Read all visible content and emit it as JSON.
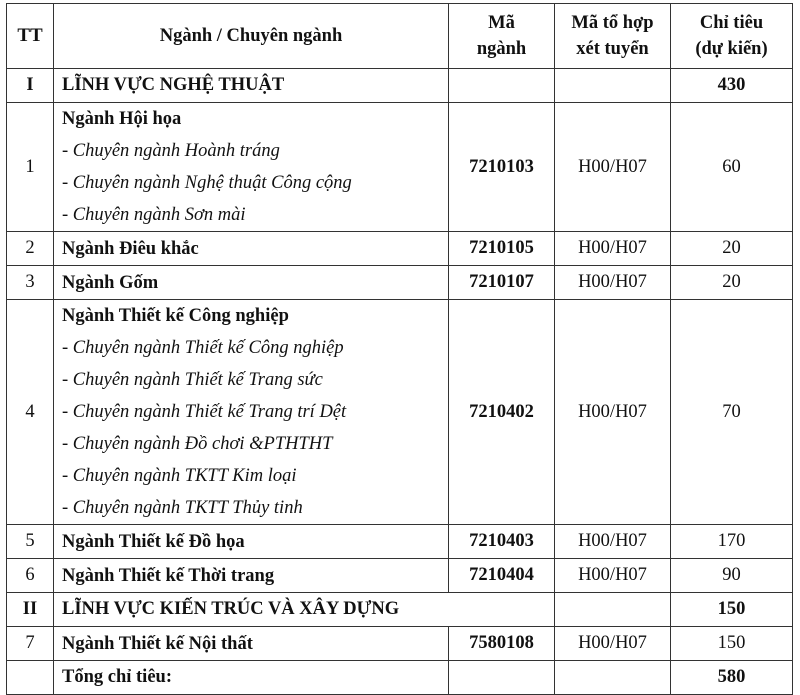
{
  "header": {
    "tt": "TT",
    "name": "Ngành / Chuyên ngành",
    "code_line1": "Mã",
    "code_line2": "ngành",
    "combo_line1": "Mã tổ hợp",
    "combo_line2": "xét tuyển",
    "quota_line1": "Chỉ tiêu",
    "quota_line2": "(dự kiến)"
  },
  "rows": [
    {
      "type": "section",
      "tt": "I",
      "name": "LĨNH VỰC NGHỆ THUẬT",
      "quota": "430"
    },
    {
      "type": "major",
      "tt": "1",
      "name": "Ngành Hội họa",
      "subs": [
        "- Chuyên ngành Hoành tráng",
        "- Chuyên ngành Nghệ thuật Công cộng",
        "- Chuyên ngành Sơn mài"
      ],
      "code": "7210103",
      "combo": "H00/H07",
      "quota": "60"
    },
    {
      "type": "major",
      "tt": "2",
      "name": "Ngành Điêu khắc",
      "subs": [],
      "code": "7210105",
      "combo": "H00/H07",
      "quota": "20"
    },
    {
      "type": "major",
      "tt": "3",
      "name": "Ngành Gốm",
      "subs": [],
      "code": "7210107",
      "combo": "H00/H07",
      "quota": "20"
    },
    {
      "type": "major",
      "tt": "4",
      "name": "Ngành Thiết kế Công nghiệp",
      "subs": [
        "- Chuyên ngành Thiết kế Công nghiệp",
        "- Chuyên ngành Thiết kế Trang sức",
        "- Chuyên ngành Thiết kế Trang trí Dệt",
        "- Chuyên ngành Đồ chơi &PTHTHT",
        "- Chuyên ngành TKTT Kim loại",
        "- Chuyên ngành TKTT Thủy tinh"
      ],
      "code": "7210402",
      "combo": "H00/H07",
      "quota": "70"
    },
    {
      "type": "major",
      "tt": "5",
      "name": "Ngành Thiết kế Đồ họa",
      "subs": [],
      "code": "7210403",
      "combo": "H00/H07",
      "quota": "170"
    },
    {
      "type": "major",
      "tt": "6",
      "name": "Ngành Thiết kế Thời trang",
      "subs": [],
      "code": "7210404",
      "combo": "H00/H07",
      "quota": "90"
    },
    {
      "type": "section2",
      "tt": "II",
      "name": "LĨNH VỰC KIẾN TRÚC VÀ XÂY DỰNG",
      "quota": "150"
    },
    {
      "type": "major",
      "tt": "7",
      "name": "Ngành Thiết kế Nội thất",
      "subs": [],
      "code": "7580108",
      "combo": "H00/H07",
      "quota": "150"
    },
    {
      "type": "total",
      "tt": "",
      "name": "Tổng chỉ tiêu:",
      "quota": "580"
    }
  ]
}
